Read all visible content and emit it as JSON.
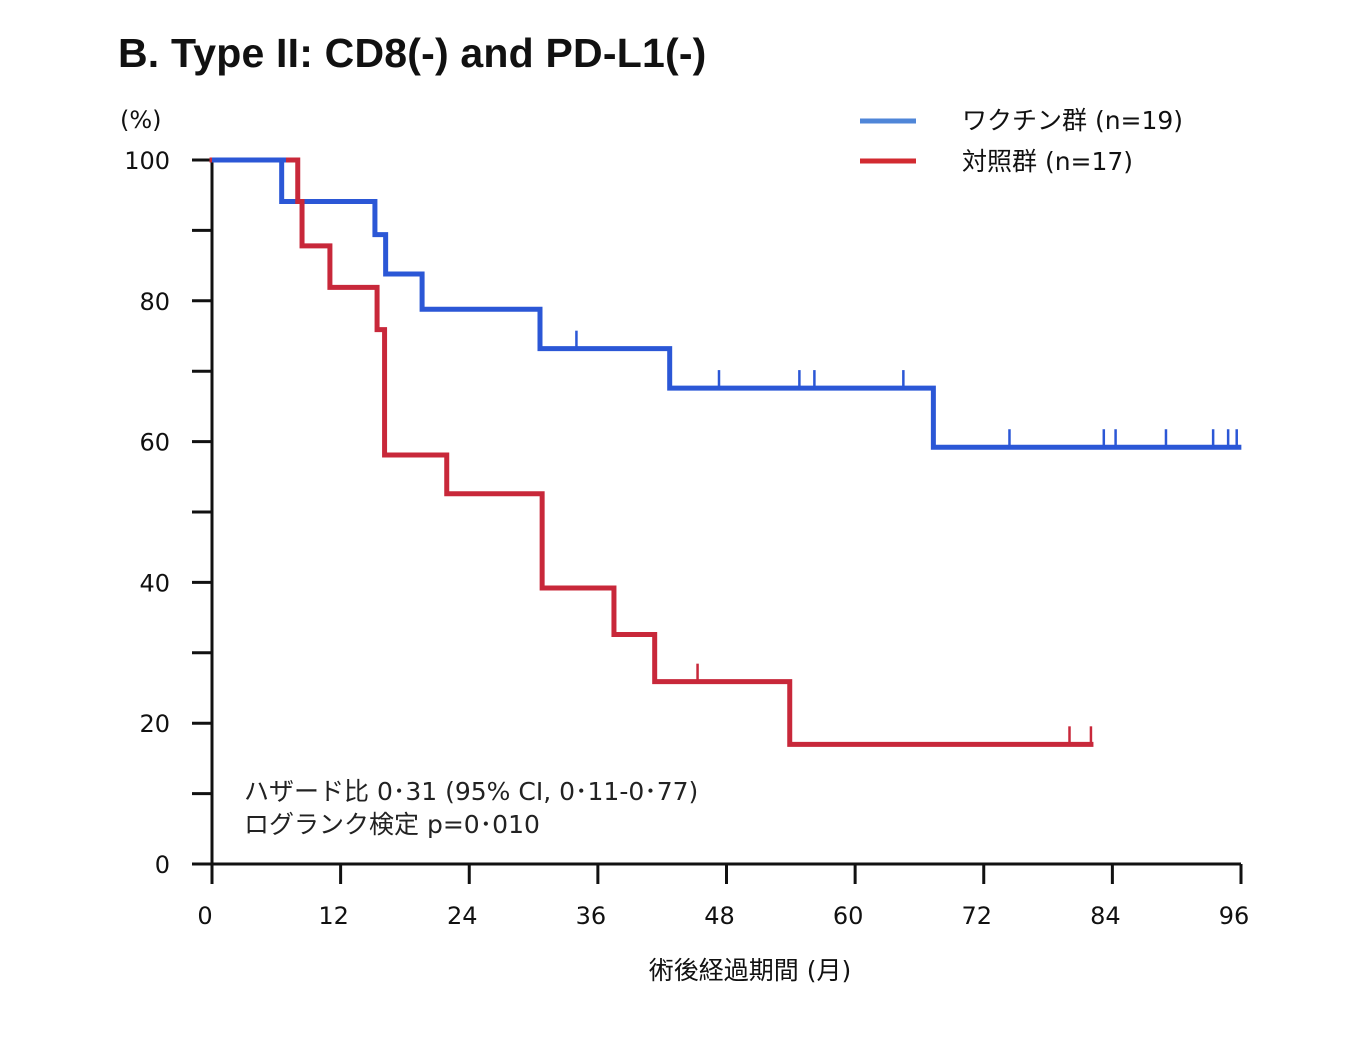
{
  "chart_data": {
    "type": "line",
    "subtype": "kaplan-meier",
    "title": "B. Type II: CD8(-) and PD-L1(-)",
    "xlabel": "術後経過期間 (月)",
    "ylabel": "(%)",
    "xlim": [
      0,
      96
    ],
    "ylim": [
      0,
      100
    ],
    "xticks": [
      0,
      12,
      24,
      36,
      48,
      60,
      72,
      84,
      96
    ],
    "yticks": [
      0,
      20,
      40,
      60,
      80,
      100
    ],
    "legend_position": "top-right",
    "grid": false,
    "series": [
      {
        "name": "ワクチン群 (n=19)",
        "color": "#2b57d6",
        "legend_color": "#4f86d8",
        "steps": [
          [
            0,
            100
          ],
          [
            6.5,
            94.1
          ],
          [
            15.2,
            89.4
          ],
          [
            16.2,
            83.8
          ],
          [
            19.6,
            78.8
          ],
          [
            30.6,
            73.2
          ],
          [
            42.7,
            67.6
          ],
          [
            67.3,
            59.2
          ]
        ],
        "end_x": 95.8,
        "censored": [
          [
            34,
            73.2
          ],
          [
            47.3,
            67.6
          ],
          [
            54.8,
            67.6
          ],
          [
            56.2,
            67.6
          ],
          [
            64.5,
            67.6
          ],
          [
            74.4,
            59.2
          ],
          [
            83.2,
            59.2
          ],
          [
            84.3,
            59.2
          ],
          [
            89,
            59.2
          ],
          [
            93.4,
            59.2
          ],
          [
            94.8,
            59.2
          ],
          [
            95.6,
            59.2
          ]
        ]
      },
      {
        "name": "対照群 (n=17)",
        "color": "#c8283a",
        "legend_color": "#d22a30",
        "steps": [
          [
            0,
            100
          ],
          [
            8,
            94.1
          ],
          [
            8.4,
            87.8
          ],
          [
            11,
            81.9
          ],
          [
            15.4,
            75.9
          ],
          [
            16.1,
            58.1
          ],
          [
            21.9,
            52.6
          ],
          [
            30.8,
            39.2
          ],
          [
            37.5,
            32.6
          ],
          [
            41.3,
            25.9
          ],
          [
            53.9,
            17.0
          ]
        ],
        "start_x": 6.9,
        "end_x": 82,
        "censored": [
          [
            45.3,
            25.9
          ],
          [
            80,
            17.0
          ],
          [
            82,
            17.0
          ]
        ]
      }
    ],
    "annotations": [
      "ハザード比 0･31 (95% CI, 0･11-0･77)",
      "ログランク検定 p=0･010"
    ]
  }
}
